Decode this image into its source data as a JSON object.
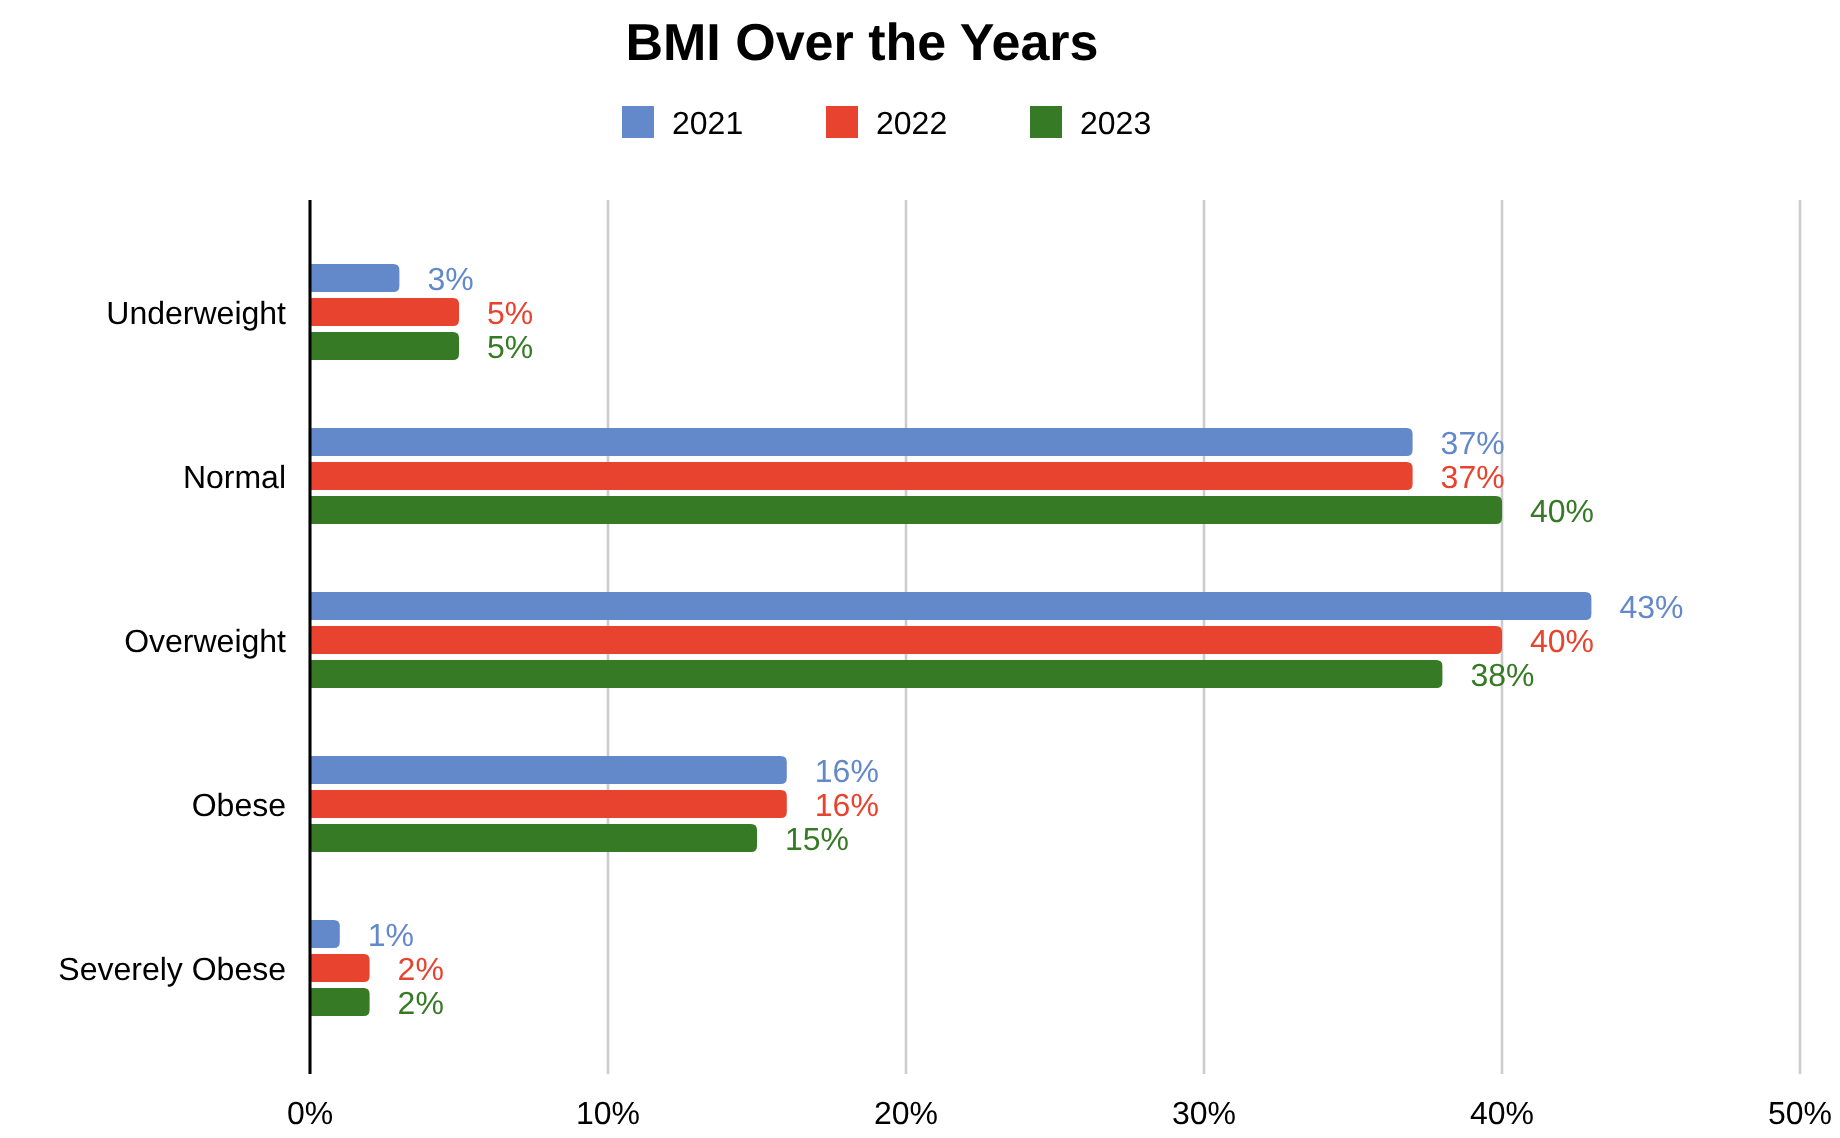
{
  "chart_data": {
    "type": "bar",
    "orientation": "horizontal",
    "title": "BMI Over the Years",
    "categories": [
      "Underweight",
      "Normal",
      "Overweight",
      "Obese",
      "Severely Obese"
    ],
    "series": [
      {
        "name": "2021",
        "color": "#6389ca",
        "values": [
          3,
          37,
          43,
          16,
          1
        ],
        "value_labels": [
          "3%",
          "37%",
          "43%",
          "16%",
          "1%"
        ]
      },
      {
        "name": "2022",
        "color": "#e8432e",
        "values": [
          5,
          37,
          40,
          16,
          2
        ],
        "value_labels": [
          "5%",
          "37%",
          "40%",
          "16%",
          "2%"
        ]
      },
      {
        "name": "2023",
        "color": "#367a26",
        "values": [
          5,
          40,
          38,
          15,
          2
        ],
        "value_labels": [
          "5%",
          "40%",
          "38%",
          "15%",
          "2%"
        ]
      }
    ],
    "xlim": [
      0,
      50
    ],
    "xticks": [
      {
        "value": 0,
        "label": "0%"
      },
      {
        "value": 10,
        "label": "10%"
      },
      {
        "value": 20,
        "label": "20%"
      },
      {
        "value": 30,
        "label": "30%"
      },
      {
        "value": 40,
        "label": "40%"
      },
      {
        "value": 50,
        "label": "50%"
      }
    ],
    "grid": "x",
    "legend": "top"
  }
}
